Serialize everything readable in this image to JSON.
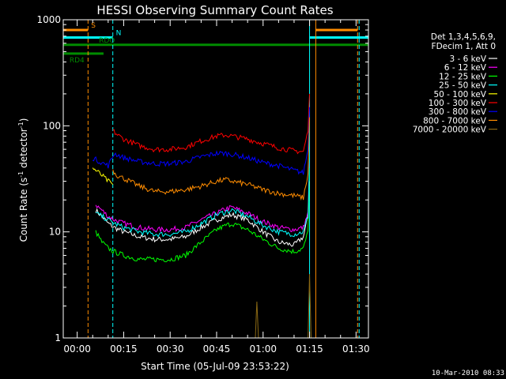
{
  "chart_data": {
    "type": "line",
    "title": "HESSI Observing Summary Count Rates",
    "xlabel": "Start Time (05-Jul-09 23:53:22)",
    "ylabel_parts": [
      "Count Rate (s",
      "-1",
      " detector",
      "-1",
      ")"
    ],
    "y_scale": "log",
    "ylim": [
      1,
      1000
    ],
    "y_ticks": [
      {
        "value": 1,
        "label": "1"
      },
      {
        "value": 10,
        "label": "10"
      },
      {
        "value": 100,
        "label": "100"
      },
      {
        "value": 1000,
        "label": "1000"
      }
    ],
    "xlim_minutes": [
      -4.5,
      94
    ],
    "x_ticks": [
      {
        "value": 0,
        "label": "00:00"
      },
      {
        "value": 15,
        "label": "00:15"
      },
      {
        "value": 30,
        "label": "00:30"
      },
      {
        "value": 45,
        "label": "00:45"
      },
      {
        "value": 60,
        "label": "01:00"
      },
      {
        "value": 75,
        "label": "01:15"
      },
      {
        "value": 90,
        "label": "01:30"
      }
    ],
    "legend_header": [
      "Det 1,3,4,5,6,9,",
      "FDecim 1, Att 0"
    ],
    "legend_placement": "right",
    "series": [
      {
        "name": "3 - 6 keV",
        "color": "#ffffff",
        "x": [
          6,
          8,
          10,
          12,
          15,
          20,
          25,
          30,
          35,
          40,
          45,
          48,
          50,
          55,
          60,
          65,
          70,
          73,
          74.5,
          75
        ],
        "y": [
          16,
          14,
          12,
          11,
          10,
          9,
          8.5,
          8.5,
          9,
          11,
          13,
          14,
          14.5,
          13,
          10,
          8,
          7.5,
          9,
          14,
          30
        ]
      },
      {
        "name": "6 - 12 keV",
        "color": "#ff00ff",
        "x": [
          6,
          8,
          10,
          12,
          15,
          20,
          25,
          30,
          35,
          40,
          45,
          48,
          50,
          55,
          60,
          65,
          70,
          73,
          74.5,
          75
        ],
        "y": [
          18,
          16,
          14,
          13,
          12,
          11,
          10.5,
          10.5,
          11,
          13,
          15,
          16.5,
          17,
          15,
          12.5,
          11,
          10.5,
          11,
          15,
          45
        ]
      },
      {
        "name": "12 - 25 keV",
        "color": "#00ff00",
        "x": [
          6,
          8,
          10,
          12,
          15,
          20,
          25,
          30,
          35,
          40,
          45,
          48,
          50,
          55,
          60,
          65,
          70,
          73,
          74.5,
          75
        ],
        "y": [
          10,
          8,
          7,
          6.5,
          6,
          5.5,
          5.5,
          5.5,
          6,
          8,
          10.5,
          11.5,
          12,
          10.5,
          8.5,
          7,
          6.5,
          7,
          10,
          40
        ]
      },
      {
        "name": "25 - 50 keV",
        "color": "#00ffff",
        "x": [
          6,
          8,
          10,
          12,
          15,
          20,
          25,
          30,
          35,
          40,
          45,
          48,
          50,
          55,
          60,
          65,
          70,
          73,
          74.5,
          75
        ],
        "y": [
          15,
          14,
          13,
          12,
          11,
          10,
          9.5,
          9.5,
          10,
          12,
          14.5,
          15.5,
          16,
          14,
          11.5,
          10,
          9.5,
          10,
          14,
          50
        ]
      },
      {
        "name": "50 - 100 keV",
        "color": "#ffff00",
        "x": [
          5,
          6,
          8,
          10,
          11.5
        ],
        "y": [
          40,
          38,
          34,
          30,
          28
        ]
      },
      {
        "name": "100 - 300 keV",
        "color": "#ff0000",
        "x": [
          11.5,
          13,
          15,
          20,
          25,
          30,
          35,
          40,
          45,
          48,
          50,
          55,
          60,
          65,
          70,
          73,
          74.5,
          75
        ],
        "y": [
          90,
          82,
          75,
          65,
          60,
          60,
          63,
          72,
          80,
          82,
          80,
          75,
          68,
          62,
          58,
          57,
          90,
          200
        ]
      },
      {
        "name": "300 - 800 keV",
        "color": "#0000ff",
        "x": [
          5,
          6,
          8,
          10,
          12,
          15,
          20,
          25,
          30,
          35,
          40,
          45,
          48,
          50,
          55,
          60,
          65,
          70,
          73,
          74.5,
          75
        ],
        "y": [
          50,
          48,
          45,
          42,
          55,
          50,
          46,
          44,
          44,
          46,
          51,
          55,
          55,
          54,
          50,
          45,
          42,
          38,
          36,
          60,
          150
        ]
      },
      {
        "name": "800 - 7000 keV",
        "color": "#ff8c00",
        "x": [
          11.5,
          13,
          15,
          20,
          25,
          30,
          35,
          40,
          45,
          48,
          50,
          55,
          60,
          65,
          70,
          73,
          74.5,
          75
        ],
        "y": [
          38,
          34,
          32,
          27,
          24,
          24,
          25,
          27,
          30,
          31,
          30,
          28,
          25,
          23,
          22,
          21,
          35,
          120
        ]
      },
      {
        "name": "7000 - 20000 keV",
        "color": "#8b6914",
        "x": [
          57.5,
          58,
          58.5,
          74.5,
          75,
          75.5
        ],
        "y": [
          1,
          2.2,
          1,
          1,
          4,
          1
        ]
      }
    ],
    "state_bars": [
      {
        "label": "S",
        "color": "#ff8c00",
        "y_level": 800,
        "segments": [
          [
            -4.5,
            3.5
          ],
          [
            77,
            90.5
          ]
        ],
        "label_at": 4.5
      },
      {
        "label": "N",
        "color": "#00ffff",
        "y_level": 680,
        "segments": [
          [
            -4.5,
            11.5
          ],
          [
            75,
            94
          ]
        ],
        "label_at": 12.5
      },
      {
        "label": "RDO",
        "color": "#008c00",
        "y_level": 580,
        "segments": [
          [
            -4.5,
            94
          ]
        ],
        "label_at": 7
      },
      {
        "label": "RD4",
        "color": "#008c00",
        "y_level": 480,
        "segments": [
          [
            -4.5,
            8.5
          ]
        ],
        "label_at": -2.5
      }
    ],
    "vlines": [
      {
        "x": -4.5,
        "color": "#00ffff",
        "style": "solid"
      },
      {
        "x": 3.5,
        "color": "#ff8c00",
        "style": "dashed"
      },
      {
        "x": 11.5,
        "color": "#00ffff",
        "style": "dashed"
      },
      {
        "x": 75,
        "color": "#00ffff",
        "style": "solid"
      },
      {
        "x": 77,
        "color": "#ff8c00",
        "style": "solid"
      },
      {
        "x": 90.5,
        "color": "#ff8c00",
        "style": "dashed"
      },
      {
        "x": 91,
        "color": "#00ffff",
        "style": "dashed"
      }
    ]
  },
  "footer": {
    "date": "10-Mar-2010 08:33"
  }
}
